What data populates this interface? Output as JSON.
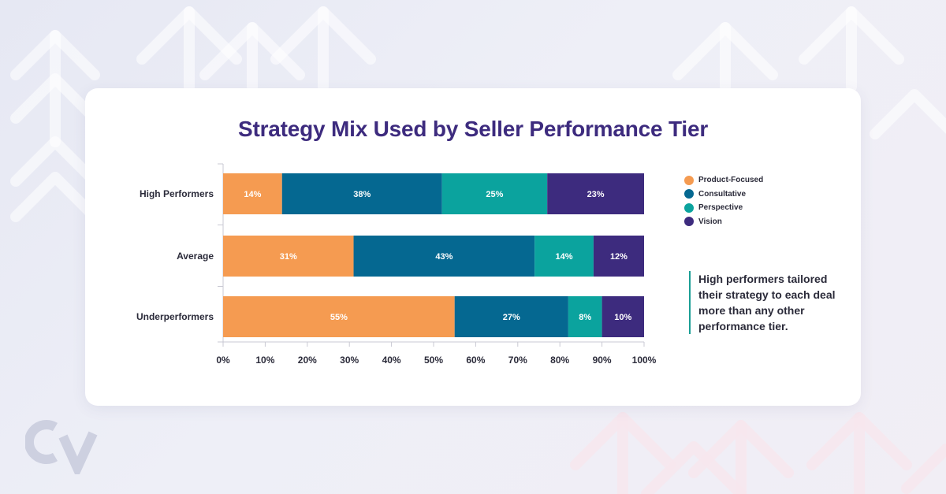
{
  "title": "Strategy Mix Used by Seller Performance Tier",
  "callout": "High performers tailored their strategy to each deal more than any other performance tier.",
  "colors": {
    "product_focused": "#f59b51",
    "consultative": "#056891",
    "perspective": "#0ba39e",
    "vision": "#3d2b7e",
    "title": "#3d2b7e",
    "accent_line": "#1a9e95"
  },
  "legend": [
    {
      "label": "Product-Focused",
      "color": "#f59b51"
    },
    {
      "label": "Consultative",
      "color": "#056891"
    },
    {
      "label": "Perspective",
      "color": "#0ba39e"
    },
    {
      "label": "Vision",
      "color": "#3d2b7e"
    }
  ],
  "chart_data": {
    "type": "bar",
    "orientation": "horizontal",
    "stacked": true,
    "title": "Strategy Mix Used by Seller Performance Tier",
    "categories": [
      "High Performers",
      "Average",
      "Underperformers"
    ],
    "series": [
      {
        "name": "Product-Focused",
        "color": "#f59b51",
        "values": [
          14,
          31,
          55
        ],
        "labels": [
          "14%",
          "31%",
          "55%"
        ]
      },
      {
        "name": "Consultative",
        "color": "#056891",
        "values": [
          38,
          43,
          27
        ],
        "labels": [
          "38%",
          "43%",
          "27%"
        ]
      },
      {
        "name": "Perspective",
        "color": "#0ba39e",
        "values": [
          25,
          14,
          8
        ],
        "labels": [
          "25%",
          "14%",
          "8%"
        ]
      },
      {
        "name": "Vision",
        "color": "#3d2b7e",
        "values": [
          23,
          12,
          10
        ],
        "labels": [
          "23%",
          "12%",
          "10%"
        ]
      }
    ],
    "xlim": [
      0,
      100
    ],
    "xticks": [
      "0%",
      "10%",
      "20%",
      "30%",
      "40%",
      "50%",
      "60%",
      "70%",
      "80%",
      "90%",
      "100%"
    ],
    "grid": false,
    "legend_position": "right"
  }
}
